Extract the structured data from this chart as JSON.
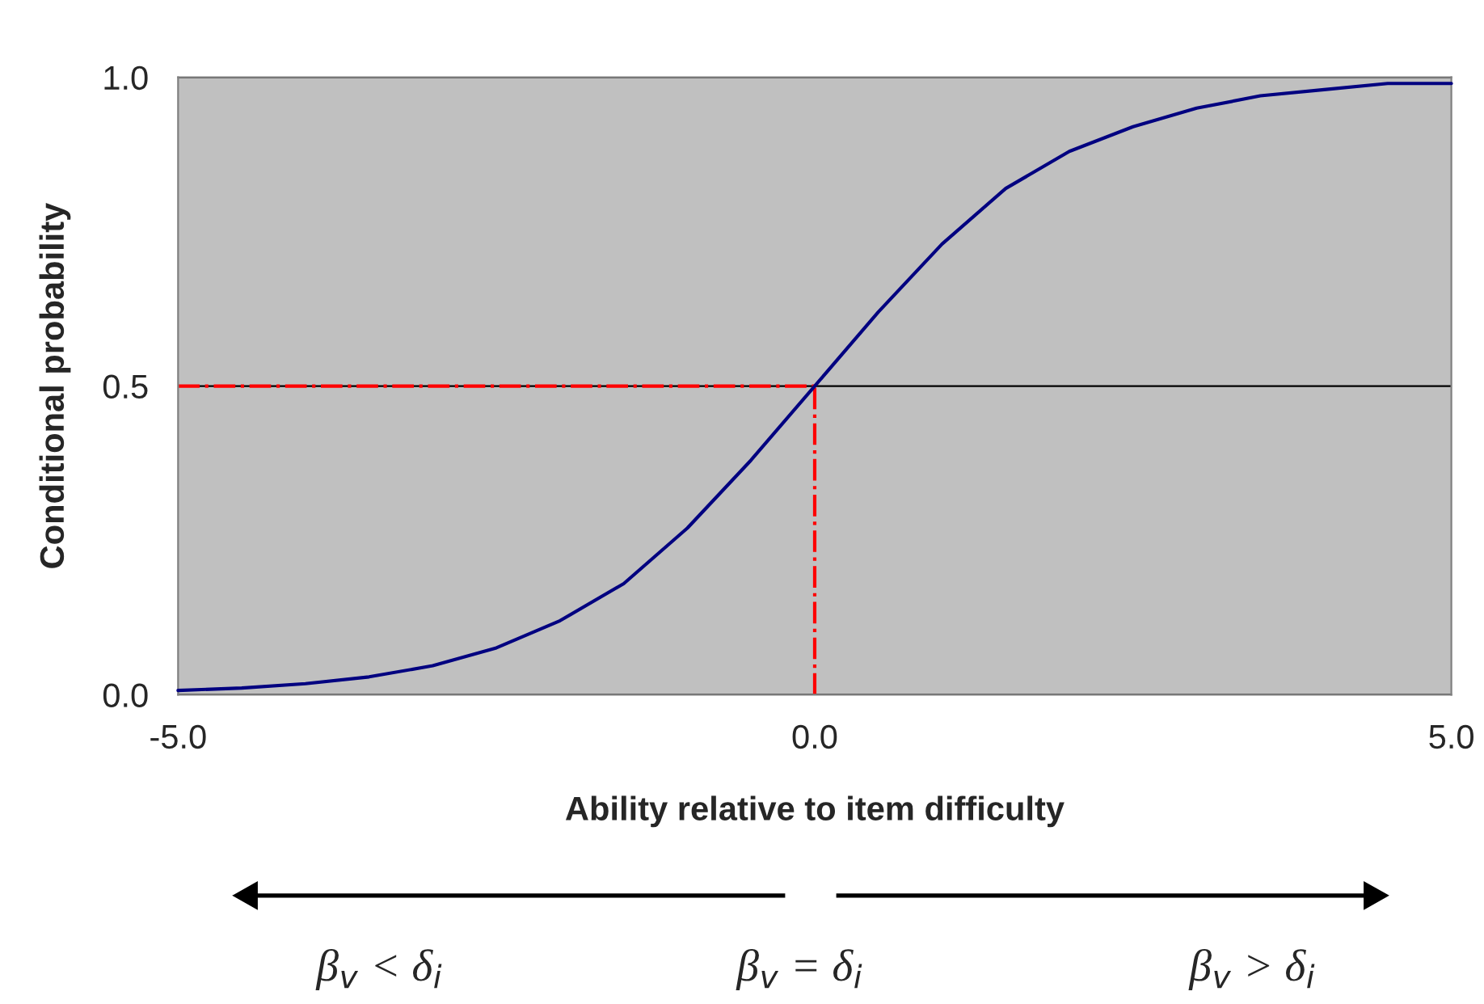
{
  "chart_data": {
    "type": "line",
    "xlabel": "Ability relative to item difficulty",
    "ylabel": "Conditional probability",
    "x": [
      -5,
      -4.5,
      -4,
      -3.5,
      -3,
      -2.5,
      -2,
      -1.5,
      -1,
      -0.5,
      0,
      0.5,
      1,
      1.5,
      2,
      2.5,
      3,
      3.5,
      4,
      4.5,
      5
    ],
    "series": [
      {
        "color": "#000080",
        "values": [
          0.007,
          0.011,
          0.018,
          0.029,
          0.047,
          0.076,
          0.12,
          0.18,
          0.27,
          0.38,
          0.5,
          0.62,
          0.73,
          0.82,
          0.88,
          0.92,
          0.95,
          0.97,
          0.98,
          0.99,
          0.99
        ]
      }
    ],
    "ref_lines": [
      {
        "axis": "y",
        "value": 0.5,
        "color": "#ff0000",
        "line_style": "dashed"
      },
      {
        "axis": "x",
        "value": 0,
        "color": "#ff0000",
        "line_style": "dashed"
      }
    ],
    "xlim": [
      -5,
      5
    ],
    "xticks": [
      {
        "value": -5,
        "label": "-5.0"
      },
      {
        "value": 0,
        "label": "0.0"
      },
      {
        "value": 5,
        "label": "5.0"
      }
    ],
    "ylim": [
      0,
      1
    ],
    "yticks": [
      {
        "value": 0,
        "label": "0.0"
      },
      {
        "value": 0.5,
        "label": "0.5"
      },
      {
        "value": 1,
        "label": "1.0"
      }
    ],
    "grid": "y",
    "annotations": [
      "β$_{v}$ < δ$_{i}$",
      "β$_{v}$ = δ$_{i}$",
      "β$_{v}$ > δ$_{i}$"
    ]
  }
}
